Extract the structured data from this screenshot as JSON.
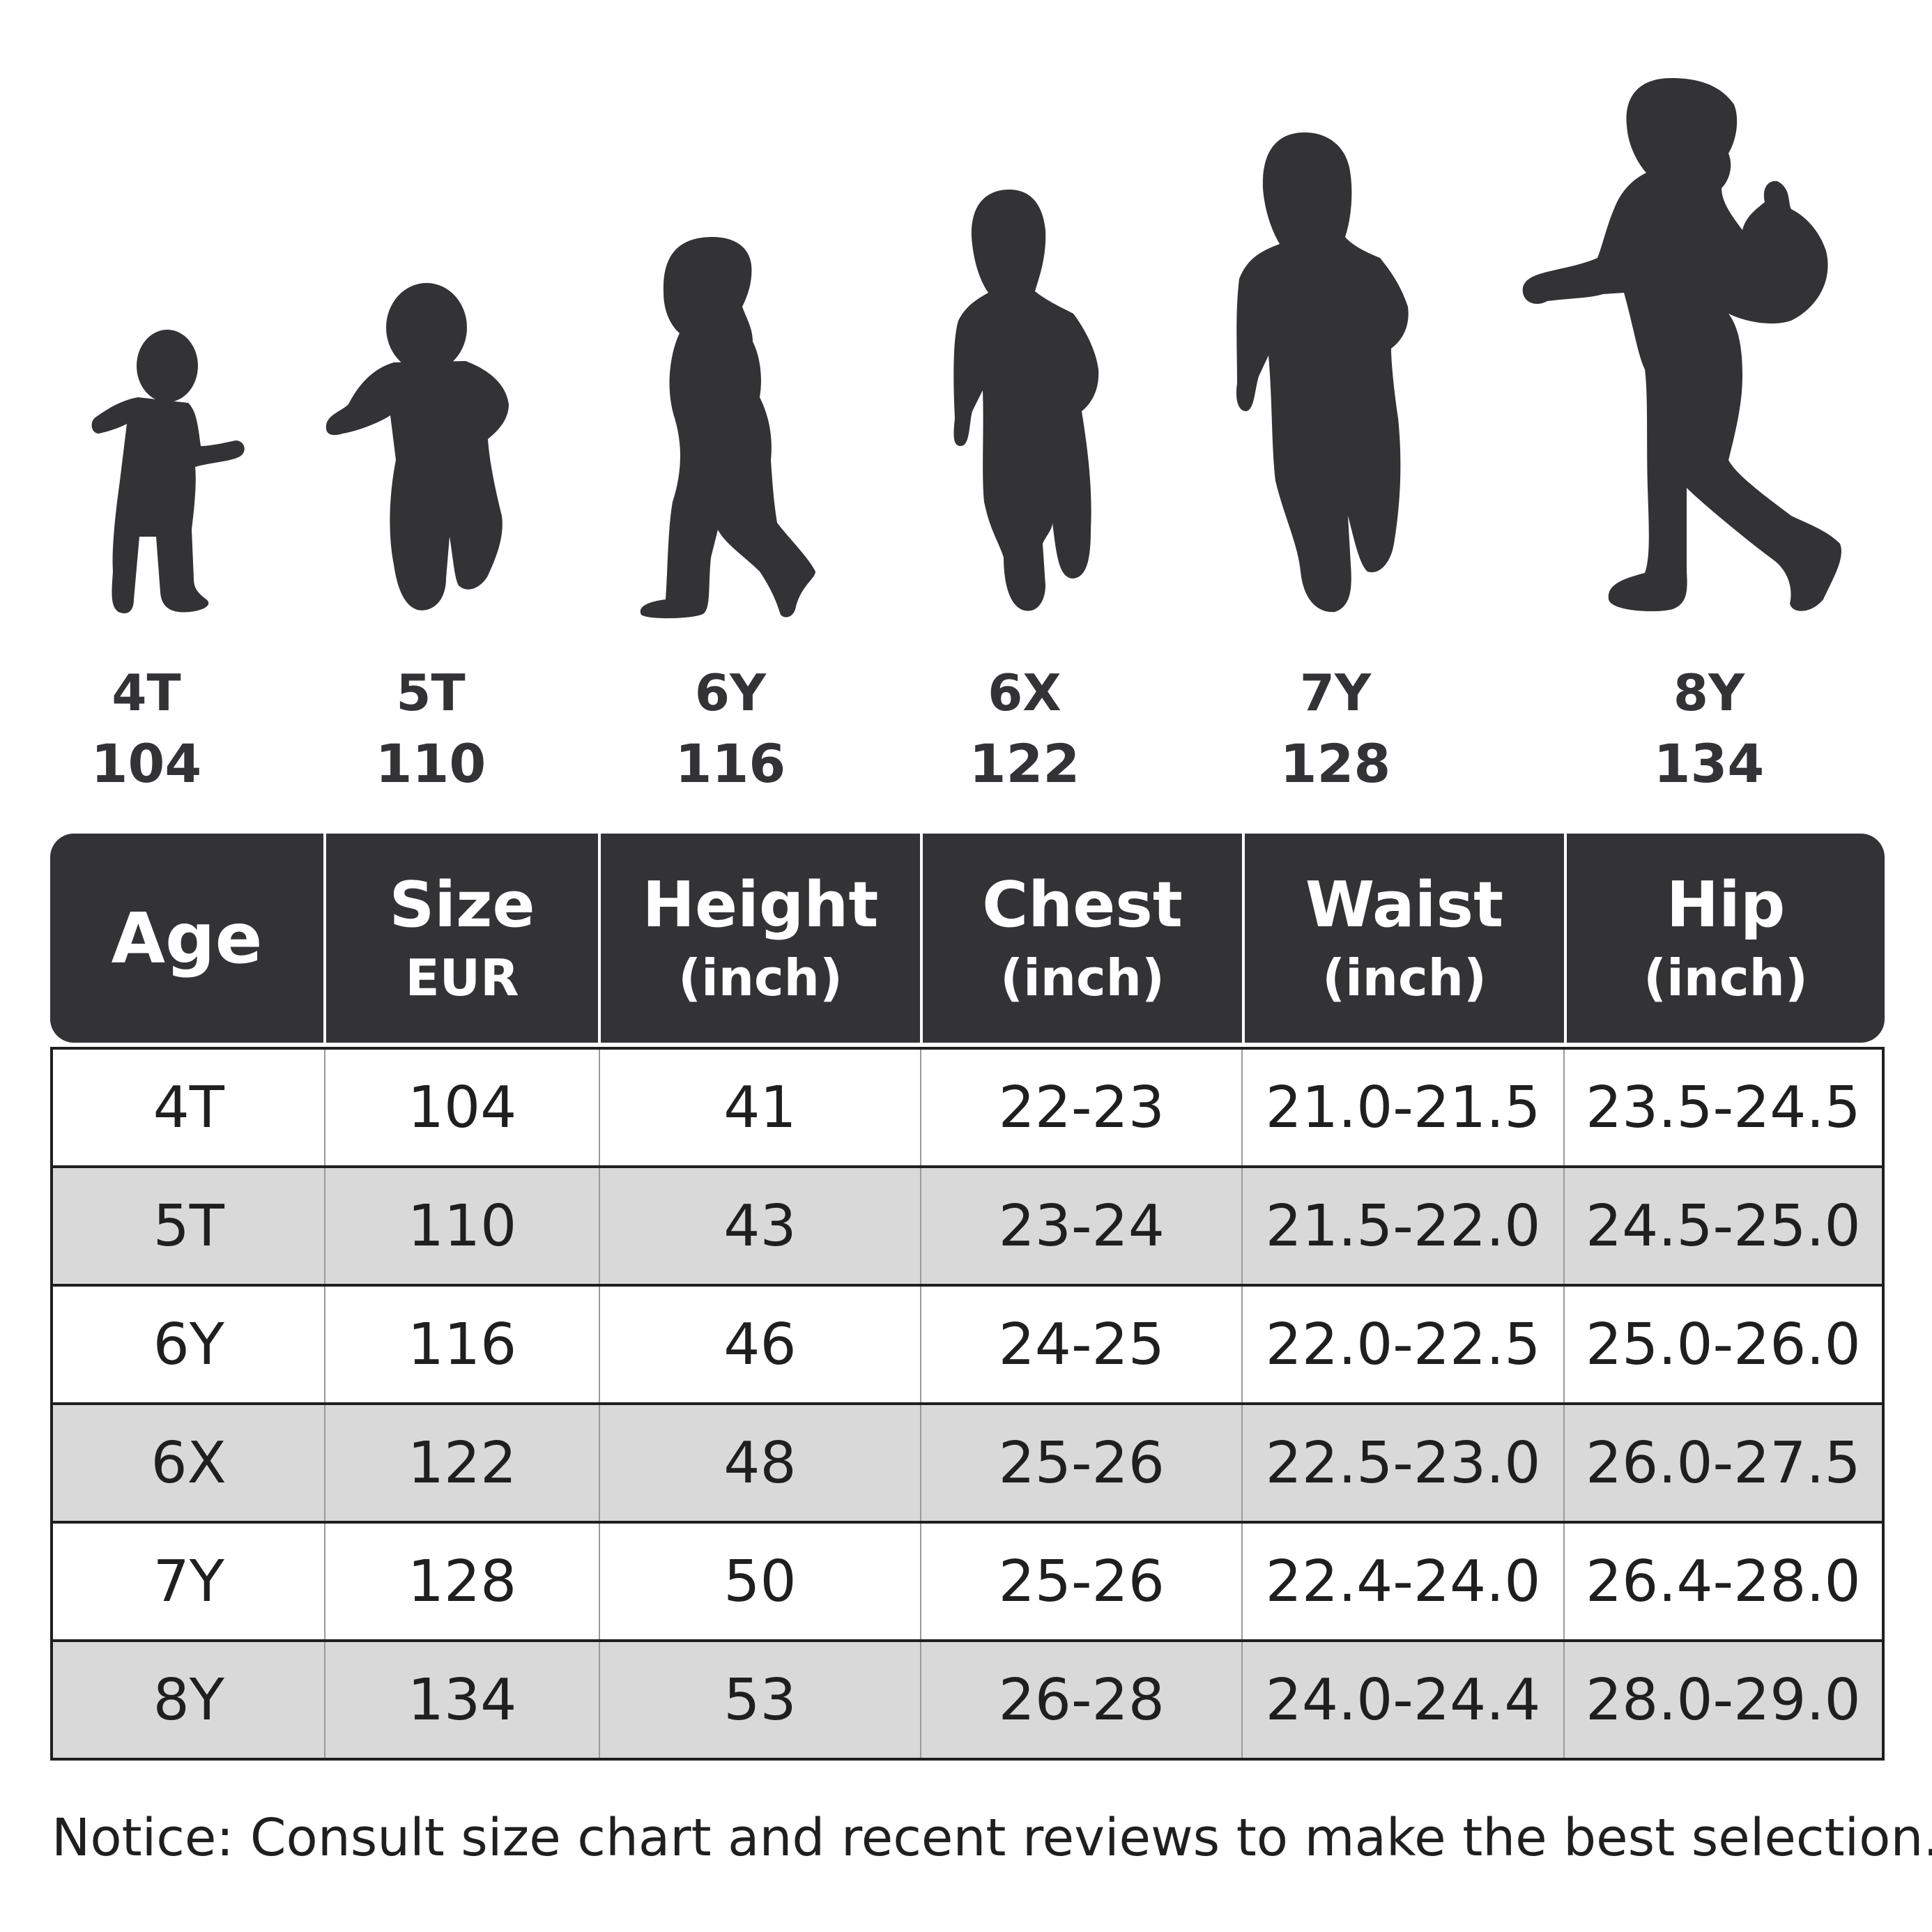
{
  "colors": {
    "silhouette": "#333336",
    "header_bg": "#333336",
    "header_text": "#ffffff",
    "row_shade": "#d9d9d9",
    "text": "#1f1f20"
  },
  "figures": [
    {
      "age": "4T",
      "eur": "104",
      "icon": "toddler-silhouette-icon"
    },
    {
      "age": "5T",
      "eur": "110",
      "icon": "child-silhouette-icon"
    },
    {
      "age": "6Y",
      "eur": "116",
      "icon": "child-silhouette-icon"
    },
    {
      "age": "6X",
      "eur": "122",
      "icon": "child-silhouette-icon"
    },
    {
      "age": "7Y",
      "eur": "128",
      "icon": "child-silhouette-icon"
    },
    {
      "age": "8Y",
      "eur": "134",
      "icon": "child-with-bag-silhouette-icon"
    }
  ],
  "table": {
    "headers": [
      {
        "main": "Age",
        "sub": ""
      },
      {
        "main": "Size",
        "sub": "EUR"
      },
      {
        "main": "Height",
        "sub": "(inch)"
      },
      {
        "main": "Chest",
        "sub": "(inch)"
      },
      {
        "main": "Waist",
        "sub": "(inch)"
      },
      {
        "main": "Hip",
        "sub": "(inch)"
      }
    ],
    "rows": [
      [
        "4T",
        "104",
        "41",
        "22-23",
        "21.0-21.5",
        "23.5-24.5"
      ],
      [
        "5T",
        "110",
        "43",
        "23-24",
        "21.5-22.0",
        "24.5-25.0"
      ],
      [
        "6Y",
        "116",
        "46",
        "24-25",
        "22.0-22.5",
        "25.0-26.0"
      ],
      [
        "6X",
        "122",
        "48",
        "25-26",
        "22.5-23.0",
        "26.0-27.5"
      ],
      [
        "7Y",
        "128",
        "50",
        "25-26",
        "22.4-24.0",
        "26.4-28.0"
      ],
      [
        "8Y",
        "134",
        "53",
        "26-28",
        "24.0-24.4",
        "28.0-29.0"
      ]
    ]
  },
  "notice": "Notice: Consult size chart and recent reviews to make the best selection."
}
